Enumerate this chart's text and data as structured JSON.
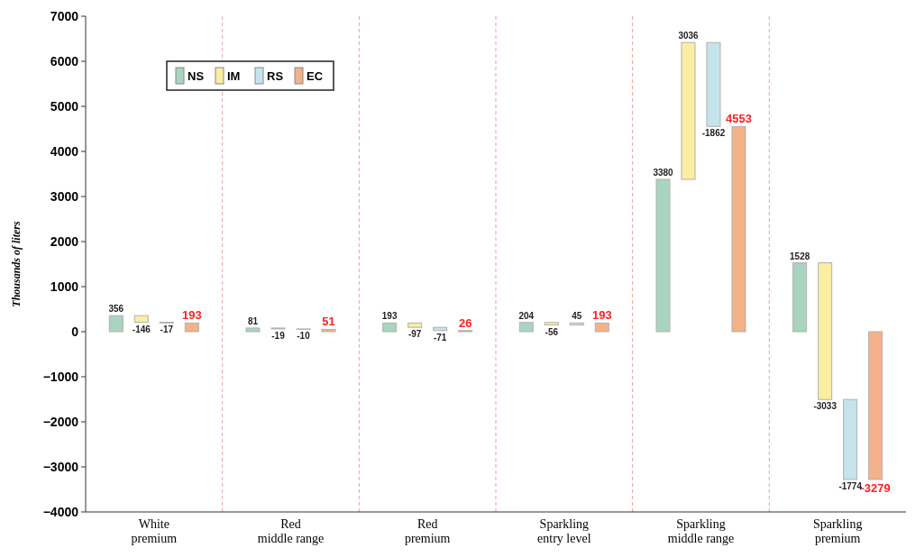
{
  "chart_data": {
    "type": "bar",
    "ylabel": "Thousands of liters",
    "categories": [
      "White\npremium",
      "Red\nmiddle range",
      "Red\npremium",
      "Sparkling\nentry level",
      "Sparkling\nmiddle range",
      "Sparkling\npremium"
    ],
    "series": [
      {
        "name": "NS",
        "color": "#a9d5c0",
        "values": [
          356,
          81,
          193,
          204,
          3380,
          1528
        ]
      },
      {
        "name": "IM",
        "color": "#fbeea0",
        "values": [
          -146,
          -19,
          -97,
          -56,
          3036,
          -3033
        ],
        "base": [
          356,
          81,
          193,
          204,
          3380,
          1528
        ]
      },
      {
        "name": "RS",
        "color": "#c5e3ea",
        "values": [
          -17,
          -10,
          -71,
          45,
          -1862,
          -1774
        ],
        "base": [
          210,
          62,
          96,
          148,
          6416,
          -1505
        ]
      },
      {
        "name": "EC",
        "color": "#f4b28a",
        "values": [
          193,
          51,
          26,
          193,
          4553,
          -3279
        ]
      }
    ],
    "ylim": [
      -4000,
      7000
    ],
    "yticks": [
      {
        "value": -4000,
        "label": "−4000"
      },
      {
        "value": -3000,
        "label": "−3000"
      },
      {
        "value": -2000,
        "label": "−2000"
      },
      {
        "value": -1000,
        "label": "−1000"
      },
      0,
      1000,
      2000,
      3000,
      4000,
      5000,
      6000,
      7000
    ],
    "data_labels": true,
    "legend": "top left",
    "grid": false
  }
}
